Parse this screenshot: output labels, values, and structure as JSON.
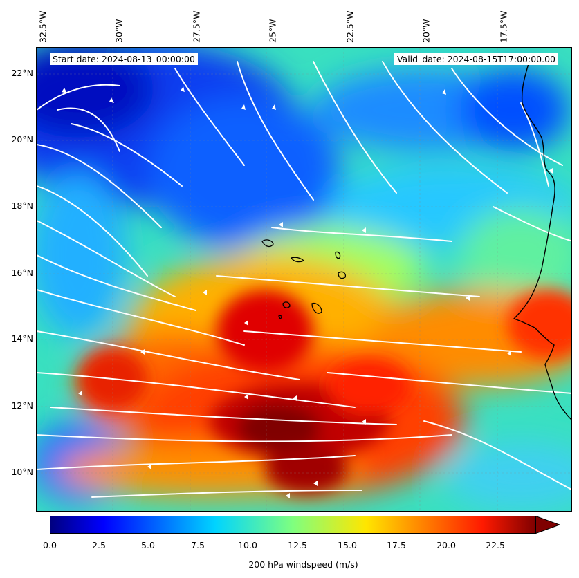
{
  "map": {
    "start_date": "Start date: 2024-08-13_00:00:00",
    "valid_date": "Valid_date: 2024-08-15T17:00:00.00",
    "lon_labels": [
      "32.5°W",
      "30°W",
      "27.5°W",
      "25°W",
      "22.5°W",
      "20°W",
      "17.5°W"
    ],
    "lat_labels": [
      "22°N",
      "20°N",
      "18°N",
      "16°N",
      "14°N",
      "12°N",
      "10°N"
    ],
    "extent": {
      "lon_min": -32.5,
      "lon_max": -15.0,
      "lat_min": 8.9,
      "lat_max": 22.8
    },
    "features": [
      "windspeed-field",
      "streamlines",
      "coastline",
      "cape-verde-islands",
      "gridlines"
    ]
  },
  "colorbar": {
    "label": "200 hPa windspeed (m/s)",
    "ticks": [
      "0.0",
      "2.5",
      "5.0",
      "7.5",
      "10.0",
      "12.5",
      "15.0",
      "17.5",
      "20.0",
      "22.5"
    ],
    "min": 0,
    "max": 25,
    "extend": "max",
    "colormap": "jet",
    "colors": [
      "#00007f",
      "#0000ff",
      "#007fff",
      "#00ffff",
      "#7fff7f",
      "#ffff00",
      "#ff7f00",
      "#ff0000",
      "#7f0000"
    ]
  }
}
